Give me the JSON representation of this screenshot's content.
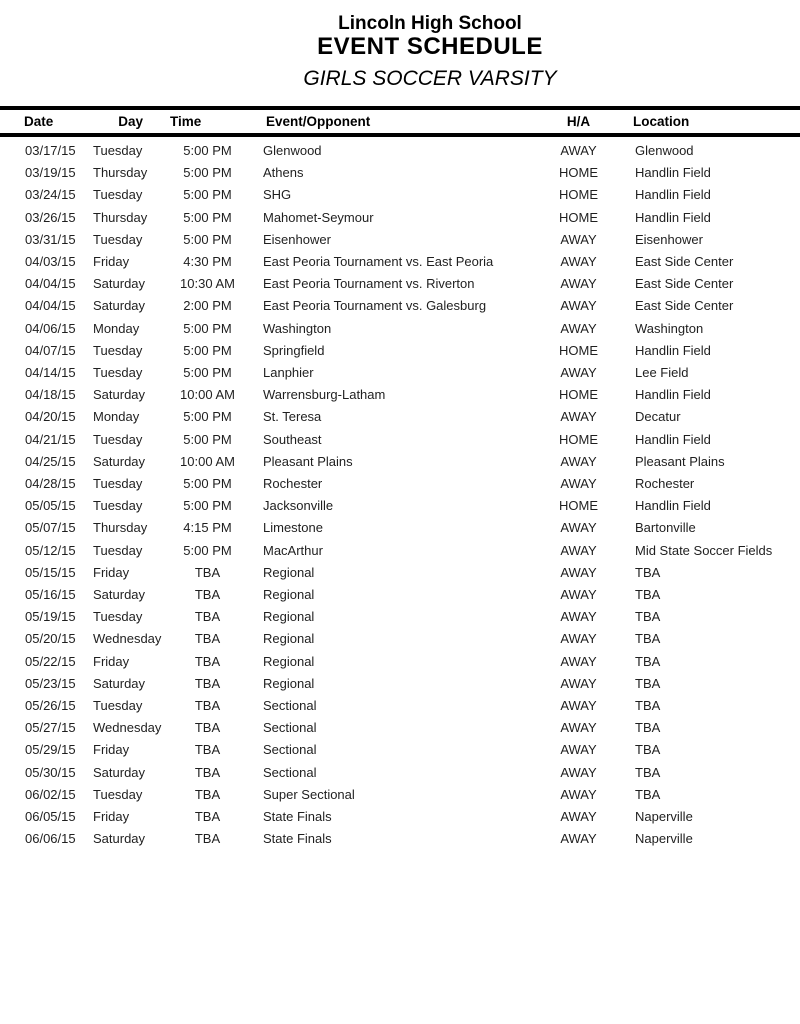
{
  "header": {
    "school": "Lincoln High School",
    "title": "EVENT SCHEDULE",
    "subtitle": "GIRLS SOCCER VARSITY"
  },
  "table": {
    "columns": [
      "Date",
      "Day",
      "Time",
      "Event/Opponent",
      "H/A",
      "Location"
    ],
    "rows": [
      [
        "03/17/15",
        "Tuesday",
        "5:00 PM",
        "Glenwood",
        "AWAY",
        "Glenwood"
      ],
      [
        "03/19/15",
        "Thursday",
        "5:00 PM",
        "Athens",
        "HOME",
        "Handlin Field"
      ],
      [
        "03/24/15",
        "Tuesday",
        "5:00 PM",
        "SHG",
        "HOME",
        "Handlin Field"
      ],
      [
        "03/26/15",
        "Thursday",
        "5:00 PM",
        "Mahomet-Seymour",
        "HOME",
        "Handlin Field"
      ],
      [
        "03/31/15",
        "Tuesday",
        "5:00 PM",
        "Eisenhower",
        "AWAY",
        "Eisenhower"
      ],
      [
        "04/03/15",
        "Friday",
        "4:30 PM",
        "East Peoria Tournament vs. East Peoria",
        "AWAY",
        "East Side Center"
      ],
      [
        "04/04/15",
        "Saturday",
        "10:30 AM",
        "East Peoria Tournament vs. Riverton",
        "AWAY",
        "East Side Center"
      ],
      [
        "04/04/15",
        "Saturday",
        "2:00 PM",
        "East Peoria Tournament vs. Galesburg",
        "AWAY",
        "East Side Center"
      ],
      [
        "04/06/15",
        "Monday",
        "5:00 PM",
        "Washington",
        "AWAY",
        "Washington"
      ],
      [
        "04/07/15",
        "Tuesday",
        "5:00 PM",
        "Springfield",
        "HOME",
        "Handlin Field"
      ],
      [
        "04/14/15",
        "Tuesday",
        "5:00 PM",
        "Lanphier",
        "AWAY",
        "Lee Field"
      ],
      [
        "04/18/15",
        "Saturday",
        "10:00 AM",
        "Warrensburg-Latham",
        "HOME",
        "Handlin Field"
      ],
      [
        "04/20/15",
        "Monday",
        "5:00 PM",
        "St. Teresa",
        "AWAY",
        "Decatur"
      ],
      [
        "04/21/15",
        "Tuesday",
        "5:00 PM",
        "Southeast",
        "HOME",
        "Handlin Field"
      ],
      [
        "04/25/15",
        "Saturday",
        "10:00 AM",
        "Pleasant Plains",
        "AWAY",
        "Pleasant Plains"
      ],
      [
        "04/28/15",
        "Tuesday",
        "5:00 PM",
        "Rochester",
        "AWAY",
        "Rochester"
      ],
      [
        "05/05/15",
        "Tuesday",
        "5:00 PM",
        "Jacksonville",
        "HOME",
        "Handlin Field"
      ],
      [
        "05/07/15",
        "Thursday",
        "4:15 PM",
        "Limestone",
        "AWAY",
        "Bartonville"
      ],
      [
        "05/12/15",
        "Tuesday",
        "5:00 PM",
        "MacArthur",
        "AWAY",
        "Mid State Soccer Fields"
      ],
      [
        "05/15/15",
        "Friday",
        "TBA",
        "Regional",
        "AWAY",
        "TBA"
      ],
      [
        "05/16/15",
        "Saturday",
        "TBA",
        "Regional",
        "AWAY",
        "TBA"
      ],
      [
        "05/19/15",
        "Tuesday",
        "TBA",
        "Regional",
        "AWAY",
        "TBA"
      ],
      [
        "05/20/15",
        "Wednesday",
        "TBA",
        "Regional",
        "AWAY",
        "TBA"
      ],
      [
        "05/22/15",
        "Friday",
        "TBA",
        "Regional",
        "AWAY",
        "TBA"
      ],
      [
        "05/23/15",
        "Saturday",
        "TBA",
        "Regional",
        "AWAY",
        "TBA"
      ],
      [
        "05/26/15",
        "Tuesday",
        "TBA",
        "Sectional",
        "AWAY",
        "TBA"
      ],
      [
        "05/27/15",
        "Wednesday",
        "TBA",
        "Sectional",
        "AWAY",
        "TBA"
      ],
      [
        "05/29/15",
        "Friday",
        "TBA",
        "Sectional",
        "AWAY",
        "TBA"
      ],
      [
        "05/30/15",
        "Saturday",
        "TBA",
        "Sectional",
        "AWAY",
        "TBA"
      ],
      [
        "06/02/15",
        "Tuesday",
        "TBA",
        "Super Sectional",
        "AWAY",
        "TBA"
      ],
      [
        "06/05/15",
        "Friday",
        "TBA",
        "State Finals",
        "AWAY",
        "Naperville"
      ],
      [
        "06/06/15",
        "Saturday",
        "TBA",
        "State Finals",
        "AWAY",
        "Naperville"
      ]
    ]
  },
  "colors": {
    "text": "#1f1f1f",
    "heading": "#000000",
    "rule": "#000000",
    "background": "#ffffff"
  }
}
